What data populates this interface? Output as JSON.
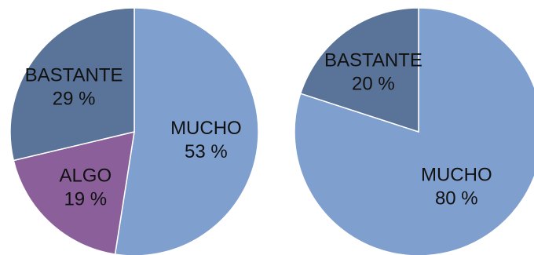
{
  "chart_data": [
    {
      "type": "pie",
      "title": "",
      "slices": [
        {
          "label": "MUCHO",
          "percent_label": "53 %",
          "value": 53,
          "color": "#7f9fcf"
        },
        {
          "label": "ALGO",
          "percent_label": "19 %",
          "value": 19,
          "color": "#8a5f9a"
        },
        {
          "label": "BASTANTE",
          "percent_label": "29 %",
          "value": 29,
          "color": "#5a7399"
        }
      ]
    },
    {
      "type": "pie",
      "title": "",
      "slices": [
        {
          "label": "MUCHO",
          "percent_label": "80 %",
          "value": 80,
          "color": "#7f9fcf"
        },
        {
          "label": "BASTANTE",
          "percent_label": "20 %",
          "value": 20,
          "color": "#5a7399"
        }
      ]
    }
  ]
}
